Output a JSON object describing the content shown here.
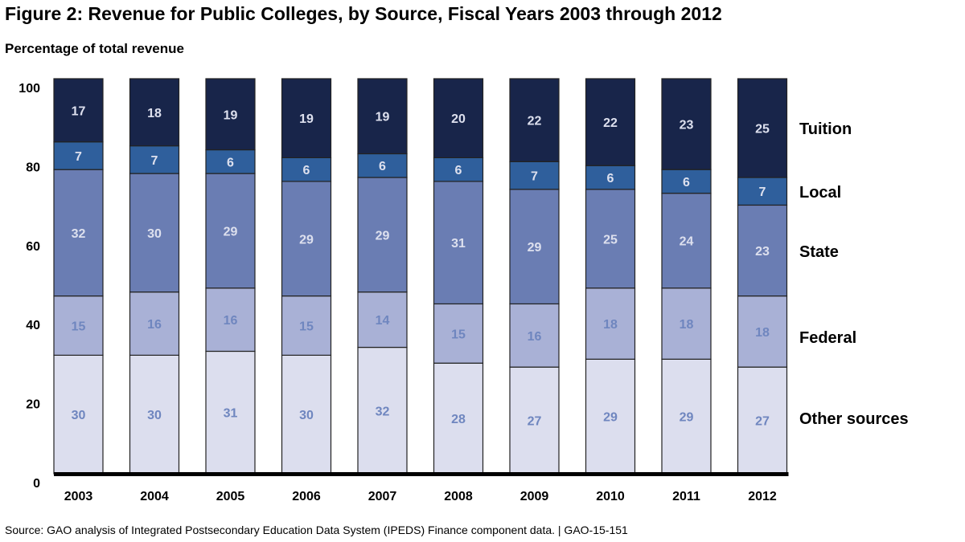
{
  "title": "Figure 2: Revenue for Public Colleges, by Source, Fiscal Years 2003 through 2012",
  "source": "Source: GAO analysis of Integrated Postsecondary Education Data System (IPEDS) Finance component data.  |  GAO-15-151",
  "chart_data": {
    "type": "bar",
    "stacked": true,
    "title": "Figure 2: Revenue for Public Colleges, by Source, Fiscal Years 2003 through 2012",
    "xlabel": "",
    "ylabel": "Percentage of total revenue",
    "ylim": [
      0,
      100
    ],
    "yticks": [
      0,
      20,
      40,
      60,
      80,
      100
    ],
    "grid": false,
    "legend": "right",
    "categories": [
      "2003",
      "2004",
      "2005",
      "2006",
      "2007",
      "2008",
      "2009",
      "2010",
      "2011",
      "2012"
    ],
    "series": [
      {
        "name": "Other sources",
        "color": "#dcdeee",
        "label_color": "#6f86bf",
        "values": [
          30,
          30,
          31,
          30,
          32,
          28,
          27,
          29,
          29,
          27
        ]
      },
      {
        "name": "Federal",
        "color": "#a9b1d6",
        "label_color": "#6f86bf",
        "values": [
          15,
          16,
          16,
          15,
          14,
          15,
          16,
          18,
          18,
          18
        ]
      },
      {
        "name": "State",
        "color": "#6a7db3",
        "label_color": "#dde0ee",
        "values": [
          32,
          30,
          29,
          29,
          29,
          31,
          29,
          25,
          24,
          23
        ]
      },
      {
        "name": "Local",
        "color": "#2f5f9c",
        "label_color": "#dde0ee",
        "values": [
          7,
          7,
          6,
          6,
          6,
          6,
          7,
          6,
          6,
          7
        ]
      },
      {
        "name": "Tuition",
        "color": "#18254a",
        "label_color": "#dde0ee",
        "values": [
          17,
          18,
          19,
          19,
          19,
          20,
          22,
          22,
          23,
          25
        ]
      }
    ]
  }
}
